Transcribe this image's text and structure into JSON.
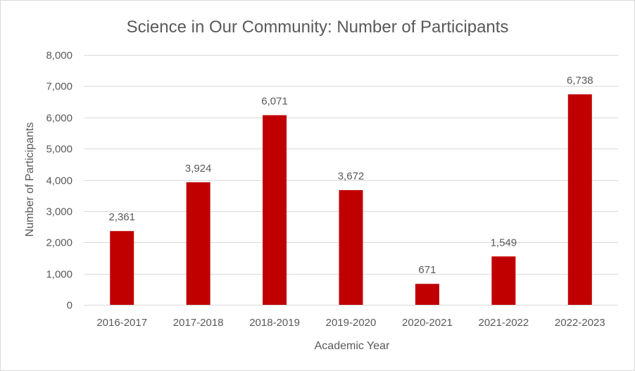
{
  "chart_data": {
    "type": "bar",
    "title": "Science in Our Community: Number of Participants",
    "xlabel": "Academic Year",
    "ylabel": "Number of Participants",
    "categories": [
      "2016-2017",
      "2017-2018",
      "2018-2019",
      "2019-2020",
      "2020-2021",
      "2021-2022",
      "2022-2023"
    ],
    "values": [
      2361,
      3924,
      6071,
      3672,
      671,
      1549,
      6738
    ],
    "data_labels": [
      "2,361",
      "3,924",
      "6,071",
      "3,672",
      "671",
      "1,549",
      "6,738"
    ],
    "ylim": [
      0,
      8000
    ],
    "yticks": [
      0,
      1000,
      2000,
      3000,
      4000,
      5000,
      6000,
      7000,
      8000
    ],
    "ytick_labels": [
      "0",
      "1,000",
      "2,000",
      "3,000",
      "4,000",
      "5,000",
      "6,000",
      "7,000",
      "8,000"
    ],
    "grid": true,
    "legend": "none",
    "bar_color": "#C00000"
  }
}
